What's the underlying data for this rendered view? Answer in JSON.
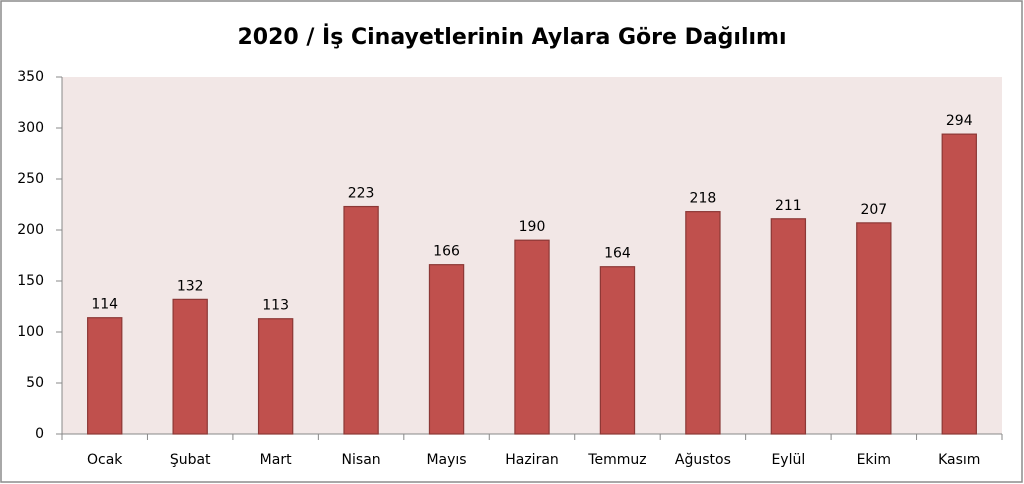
{
  "chart_data": {
    "type": "bar",
    "title": "2020 / İş Cinayetlerinin Aylara Göre Dağılımı",
    "categories": [
      "Ocak",
      "Şubat",
      "Mart",
      "Nisan",
      "Mayıs",
      "Haziran",
      "Temmuz",
      "Ağustos",
      "Eylül",
      "Ekim",
      "Kasım"
    ],
    "values": [
      114,
      132,
      113,
      223,
      166,
      190,
      164,
      218,
      211,
      207,
      294
    ],
    "color": "#c0504d",
    "ylim": [
      0,
      350
    ],
    "yticks": [
      0,
      50,
      100,
      150,
      200,
      250,
      300,
      350
    ],
    "grid": false
  }
}
